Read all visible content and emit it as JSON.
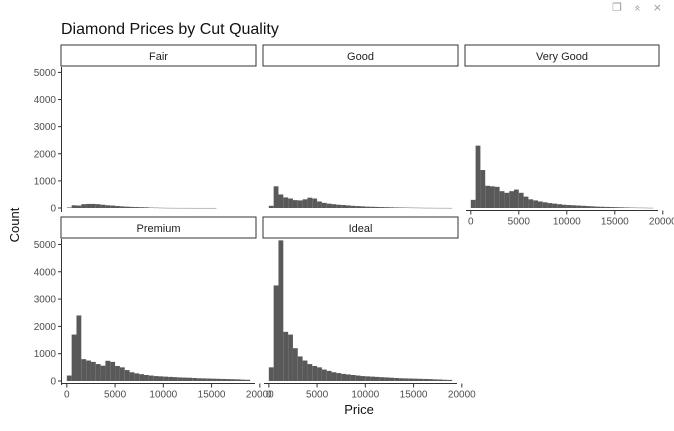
{
  "toolbar": {
    "export_icon": "copy-icon",
    "collapse_icon": "double-chevron-up-icon",
    "close_icon": "close-icon",
    "export_glyph": "❐",
    "collapse_glyph": "»",
    "close_glyph": "×"
  },
  "chart_data": {
    "type": "histogram",
    "title": "Diamond Prices by Cut Quality",
    "xlabel": "Price",
    "ylabel": "Count",
    "bar_color": "#595959",
    "xlim": [
      -500,
      19500
    ],
    "ylim": [
      0,
      5200
    ],
    "x_ticks": [
      0,
      5000,
      10000,
      15000,
      20000
    ],
    "y_ticks": [
      0,
      1000,
      2000,
      3000,
      4000,
      5000
    ],
    "bin_edges": [
      0,
      500,
      1000,
      1500,
      2000,
      2500,
      3000,
      3500,
      4000,
      4500,
      5000,
      5500,
      6000,
      6500,
      7000,
      7500,
      8000,
      8500,
      9000,
      9500,
      10000,
      10500,
      11000,
      11500,
      12000,
      12500,
      13000,
      13500,
      14000,
      14500,
      15000,
      15500,
      16000,
      16500,
      17000,
      17500,
      18000,
      18500,
      19000
    ],
    "panels": [
      {
        "name": "Fair",
        "counts": [
          20,
          100,
          90,
          140,
          150,
          150,
          140,
          120,
          100,
          90,
          75,
          60,
          50,
          40,
          35,
          30,
          25,
          15,
          12,
          8,
          5,
          4,
          3,
          2,
          2,
          2,
          1,
          1,
          1,
          1,
          1,
          0,
          0,
          0,
          0,
          0,
          0,
          0
        ]
      },
      {
        "name": "Good",
        "counts": [
          80,
          800,
          500,
          390,
          350,
          290,
          280,
          320,
          380,
          350,
          240,
          190,
          160,
          140,
          120,
          110,
          95,
          80,
          70,
          60,
          50,
          45,
          40,
          35,
          30,
          25,
          20,
          18,
          15,
          12,
          10,
          8,
          6,
          5,
          4,
          3,
          3,
          2
        ]
      },
      {
        "name": "Very Good",
        "counts": [
          300,
          2300,
          1400,
          820,
          800,
          780,
          620,
          560,
          620,
          680,
          560,
          420,
          320,
          280,
          240,
          210,
          180,
          160,
          140,
          120,
          110,
          100,
          90,
          80,
          70,
          60,
          50,
          45,
          40,
          35,
          30,
          25,
          20,
          15,
          12,
          10,
          8,
          5
        ]
      },
      {
        "name": "Premium",
        "counts": [
          200,
          1700,
          2400,
          800,
          750,
          700,
          620,
          560,
          740,
          700,
          550,
          500,
          400,
          320,
          280,
          250,
          220,
          200,
          180,
          170,
          160,
          150,
          140,
          130,
          125,
          120,
          110,
          100,
          95,
          90,
          85,
          80,
          75,
          70,
          65,
          60,
          50,
          45
        ]
      },
      {
        "name": "Ideal",
        "counts": [
          500,
          3500,
          5150,
          1800,
          1700,
          1200,
          900,
          750,
          620,
          550,
          500,
          420,
          370,
          320,
          290,
          260,
          240,
          220,
          200,
          180,
          170,
          160,
          150,
          140,
          130,
          120,
          110,
          100,
          95,
          90,
          85,
          80,
          75,
          70,
          60,
          55,
          45,
          40
        ]
      }
    ]
  }
}
